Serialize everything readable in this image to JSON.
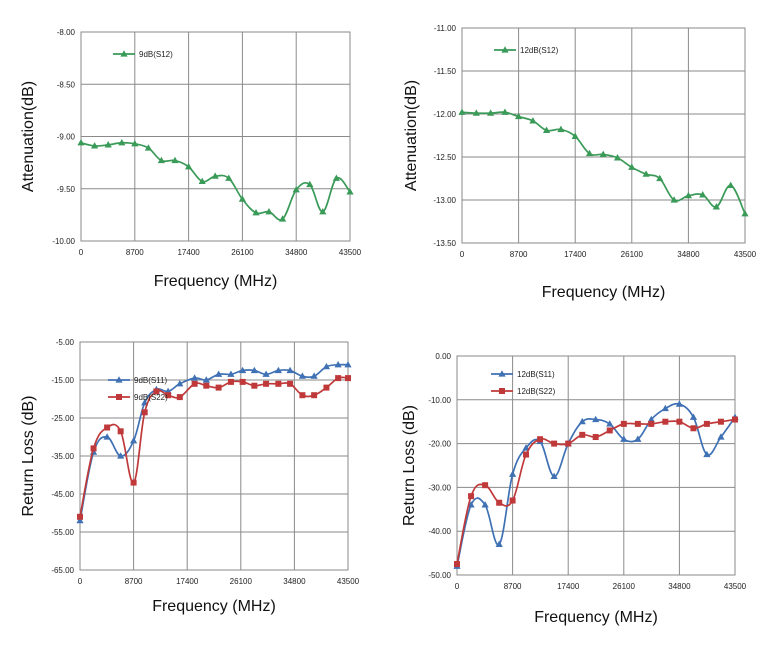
{
  "chart_data": [
    {
      "type": "line",
      "xlabel": "Frequency (MHz)",
      "ylabel": "Attenuation(dB)",
      "xlim": [
        0,
        43500
      ],
      "ylim": [
        -10.0,
        -8.0
      ],
      "x_ticks": [
        "0",
        "8700",
        "17400",
        "26100",
        "34800",
        "43500"
      ],
      "y_ticks": [
        "-8.00",
        "-8.50",
        "-9.00",
        "-9.50",
        "-10.00"
      ],
      "legend_position": "top-left",
      "series": [
        {
          "name": "9dB(S12)",
          "color": "#3a9a58",
          "marker": "triangle",
          "x": [
            0,
            2200,
            4400,
            6600,
            8700,
            10900,
            13000,
            15200,
            17400,
            19600,
            21700,
            23900,
            26100,
            28300,
            30400,
            32600,
            34800,
            37000,
            39100,
            41300,
            43500
          ],
          "y": [
            -9.06,
            -9.09,
            -9.08,
            -9.06,
            -9.07,
            -9.11,
            -9.23,
            -9.23,
            -9.29,
            -9.43,
            -9.38,
            -9.4,
            -9.6,
            -9.73,
            -9.72,
            -9.79,
            -9.51,
            -9.46,
            -9.72,
            -9.4,
            -9.53
          ]
        }
      ]
    },
    {
      "type": "line",
      "xlabel": "Frequency (MHz)",
      "ylabel": "Attenuation(dB)",
      "xlim": [
        0,
        43500
      ],
      "ylim": [
        -13.5,
        -11.0
      ],
      "x_ticks": [
        "0",
        "8700",
        "17400",
        "26100",
        "34800",
        "43500"
      ],
      "y_ticks": [
        "-11.00",
        "-11.50",
        "-12.00",
        "-12.50",
        "-13.00",
        "-13.50"
      ],
      "legend_position": "top-left",
      "series": [
        {
          "name": "12dB(S12)",
          "color": "#3a9a58",
          "marker": "triangle",
          "x": [
            0,
            2200,
            4400,
            6600,
            8700,
            10900,
            13000,
            15200,
            17400,
            19600,
            21700,
            23900,
            26100,
            28300,
            30400,
            32600,
            34800,
            37000,
            39100,
            41300,
            43500
          ],
          "y": [
            -11.98,
            -11.99,
            -11.99,
            -11.98,
            -12.03,
            -12.08,
            -12.19,
            -12.18,
            -12.26,
            -12.46,
            -12.47,
            -12.51,
            -12.62,
            -12.7,
            -12.75,
            -13.0,
            -12.95,
            -12.94,
            -13.08,
            -12.83,
            -13.16
          ]
        }
      ]
    },
    {
      "type": "line",
      "xlabel": "Frequency (MHz)",
      "ylabel": "Return Loss (dB)",
      "xlim": [
        0,
        43500
      ],
      "ylim": [
        -65,
        -5
      ],
      "x_ticks": [
        "0",
        "8700",
        "17400",
        "26100",
        "34800",
        "43500"
      ],
      "y_ticks": [
        "-5.00",
        "-15.00",
        "-25.00",
        "-35.00",
        "-45.00",
        "-55.00",
        "-65.00"
      ],
      "legend_position": "top-left",
      "series": [
        {
          "name": "9dB(S11)",
          "color": "#3f71b4",
          "marker": "triangle",
          "x": [
            0,
            2200,
            4400,
            6600,
            8700,
            10500,
            12400,
            14300,
            16200,
            18600,
            20500,
            22500,
            24500,
            26400,
            28300,
            30200,
            32200,
            34100,
            36100,
            38000,
            40000,
            41900,
            43500
          ],
          "y": [
            -52,
            -34,
            -30,
            -35,
            -31,
            -21,
            -17.5,
            -18,
            -16,
            -14.5,
            -15,
            -13.5,
            -13.5,
            -12.5,
            -12.5,
            -13.5,
            -12.5,
            -12.5,
            -14,
            -14,
            -11.5,
            -11,
            -11
          ]
        },
        {
          "name": "9dB(S22)",
          "color": "#c0393a",
          "marker": "square",
          "x": [
            0,
            2200,
            4400,
            6600,
            8700,
            10500,
            12400,
            14300,
            16200,
            18600,
            20500,
            22500,
            24500,
            26400,
            28300,
            30200,
            32200,
            34100,
            36100,
            38000,
            40000,
            41900,
            43500
          ],
          "y": [
            -51,
            -33,
            -27.5,
            -28.5,
            -42,
            -23.5,
            -18,
            -19,
            -19.5,
            -16,
            -16.5,
            -17,
            -15.5,
            -15.5,
            -16.5,
            -16,
            -16,
            -16,
            -19,
            -19,
            -17,
            -14.5,
            -14.5
          ]
        }
      ]
    },
    {
      "type": "line",
      "xlabel": "Frequency (MHz)",
      "ylabel": "Return Loss (dB)",
      "xlim": [
        0,
        43500
      ],
      "ylim": [
        -50,
        0
      ],
      "x_ticks": [
        "0",
        "8700",
        "17400",
        "26100",
        "34800",
        "43500"
      ],
      "y_ticks": [
        "0.00",
        "-10.00",
        "-20.00",
        "-30.00",
        "-40.00",
        "-50.00"
      ],
      "legend_position": "top-left",
      "series": [
        {
          "name": "12dB(S11)",
          "color": "#3f71b4",
          "marker": "triangle",
          "x": [
            0,
            2200,
            4400,
            6600,
            8700,
            10800,
            13000,
            15200,
            17400,
            19600,
            21700,
            23900,
            26100,
            28300,
            30400,
            32600,
            34800,
            37000,
            39100,
            41300,
            43500
          ],
          "y": [
            -48,
            -34,
            -34,
            -43,
            -27,
            -21,
            -19.5,
            -27.5,
            -20,
            -15,
            -14.5,
            -15.5,
            -19,
            -19,
            -14.5,
            -12,
            -11,
            -14,
            -22.5,
            -18.5,
            -14
          ]
        },
        {
          "name": "12dB(S22)",
          "color": "#c0393a",
          "marker": "square",
          "x": [
            0,
            2200,
            4400,
            6600,
            8700,
            10800,
            13000,
            15200,
            17400,
            19600,
            21700,
            23900,
            26100,
            28300,
            30400,
            32600,
            34800,
            37000,
            39100,
            41300,
            43500
          ],
          "y": [
            -47.5,
            -32,
            -29.5,
            -33.5,
            -33,
            -22.5,
            -19,
            -20,
            -20,
            -18,
            -18.5,
            -17,
            -15.5,
            -15.5,
            -15.5,
            -15,
            -15,
            -16.5,
            -15.5,
            -15,
            -14.5
          ]
        }
      ]
    }
  ]
}
